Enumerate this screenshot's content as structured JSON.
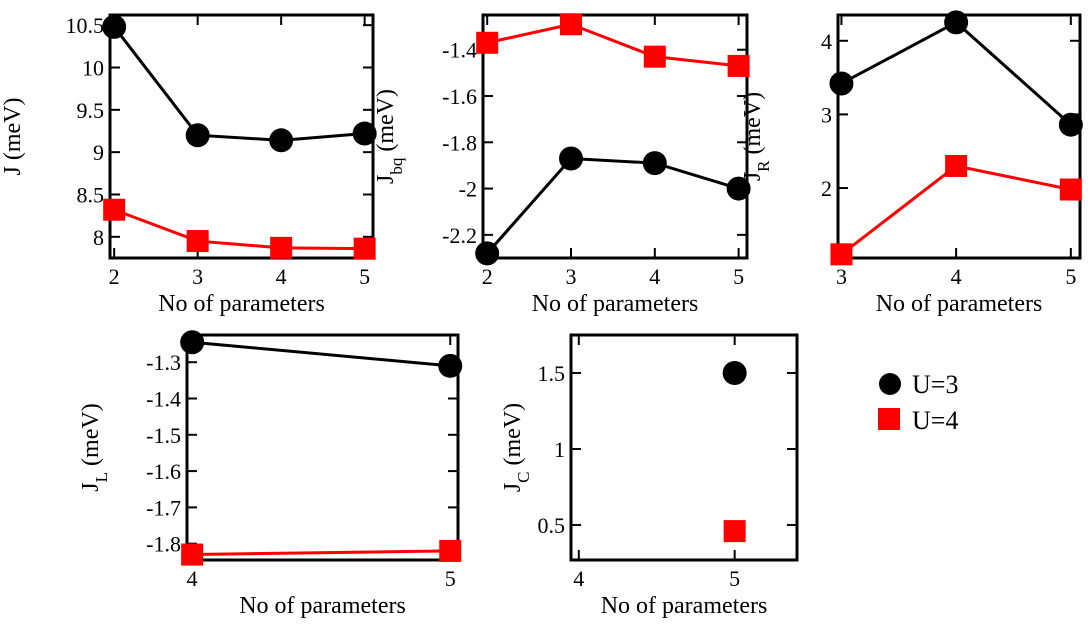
{
  "legend": [
    {
      "name": "U=3",
      "color": "#000000",
      "marker": "circle"
    },
    {
      "name": "U=4",
      "color": "#ff0000",
      "marker": "square"
    }
  ],
  "chart_data": [
    {
      "type": "line",
      "xlabel": "No of parameters",
      "ylabel": {
        "main": "J",
        "sub": "",
        "unit": "(meV)"
      },
      "x_ticks": [
        "2",
        "3",
        "4",
        "5"
      ],
      "y_ticks": [
        "10.5",
        "10",
        "9.5",
        "9",
        "8.5",
        "8"
      ],
      "x": [
        2,
        3,
        4,
        5
      ],
      "xlim": [
        1.95,
        5.1
      ],
      "ylim": [
        7.75,
        10.62
      ],
      "series": [
        {
          "name": "U=3",
          "values": [
            10.48,
            9.2,
            9.14,
            9.22
          ]
        },
        {
          "name": "U=4",
          "values": [
            8.32,
            7.95,
            7.87,
            7.86
          ]
        }
      ]
    },
    {
      "type": "line",
      "xlabel": "No of parameters",
      "ylabel": {
        "main": "J",
        "sub": "bq",
        "unit": "(meV)"
      },
      "x_ticks": [
        "2",
        "3",
        "4",
        "5"
      ],
      "y_ticks": [
        "-1.4",
        "-1.6",
        "-1.8",
        "-2",
        "-2.2"
      ],
      "x": [
        2,
        3,
        4,
        5
      ],
      "xlim": [
        1.95,
        5.1
      ],
      "ylim": [
        -2.3,
        -1.25
      ],
      "series": [
        {
          "name": "U=3",
          "values": [
            -2.28,
            -1.87,
            -1.89,
            -2.0
          ]
        },
        {
          "name": "U=4",
          "values": [
            -1.37,
            -1.29,
            -1.43,
            -1.47
          ]
        }
      ]
    },
    {
      "type": "line",
      "xlabel": "No of parameters",
      "ylabel": {
        "main": "J",
        "sub": "R",
        "unit": "(meV)"
      },
      "x_ticks": [
        "3",
        "4",
        "5"
      ],
      "y_ticks": [
        "4",
        "3",
        "2"
      ],
      "x": [
        3,
        4,
        5
      ],
      "xlim": [
        2.97,
        5.08
      ],
      "ylim": [
        1.05,
        4.35
      ],
      "series": [
        {
          "name": "U=3",
          "values": [
            3.42,
            4.25,
            2.86
          ]
        },
        {
          "name": "U=4",
          "values": [
            1.1,
            2.3,
            1.98
          ]
        }
      ]
    },
    {
      "type": "line",
      "xlabel": "No of parameters",
      "ylabel": {
        "main": "J",
        "sub": "L",
        "unit": "(meV)"
      },
      "x_ticks": [
        "4",
        "5"
      ],
      "y_ticks": [
        "-1.3",
        "-1.4",
        "-1.5",
        "-1.6",
        "-1.7",
        "-1.8"
      ],
      "x": [
        4,
        5
      ],
      "xlim": [
        3.98,
        5.03
      ],
      "ylim": [
        -1.845,
        -1.225
      ],
      "series": [
        {
          "name": "U=3",
          "values": [
            -1.245,
            -1.31
          ]
        },
        {
          "name": "U=4",
          "values": [
            -1.83,
            -1.82
          ]
        }
      ]
    },
    {
      "type": "scatter",
      "xlabel": "No of parameters",
      "ylabel": {
        "main": "J",
        "sub": "C",
        "unit": "(meV)"
      },
      "x_ticks": [
        "4",
        "5"
      ],
      "y_ticks": [
        "1.5",
        "1",
        "0.5"
      ],
      "x": [
        5
      ],
      "xlim": [
        3.95,
        5.4
      ],
      "ylim": [
        0.27,
        1.75
      ],
      "series": [
        {
          "name": "U=3",
          "values": [
            1.5
          ]
        },
        {
          "name": "U=4",
          "values": [
            0.46
          ]
        }
      ]
    }
  ]
}
